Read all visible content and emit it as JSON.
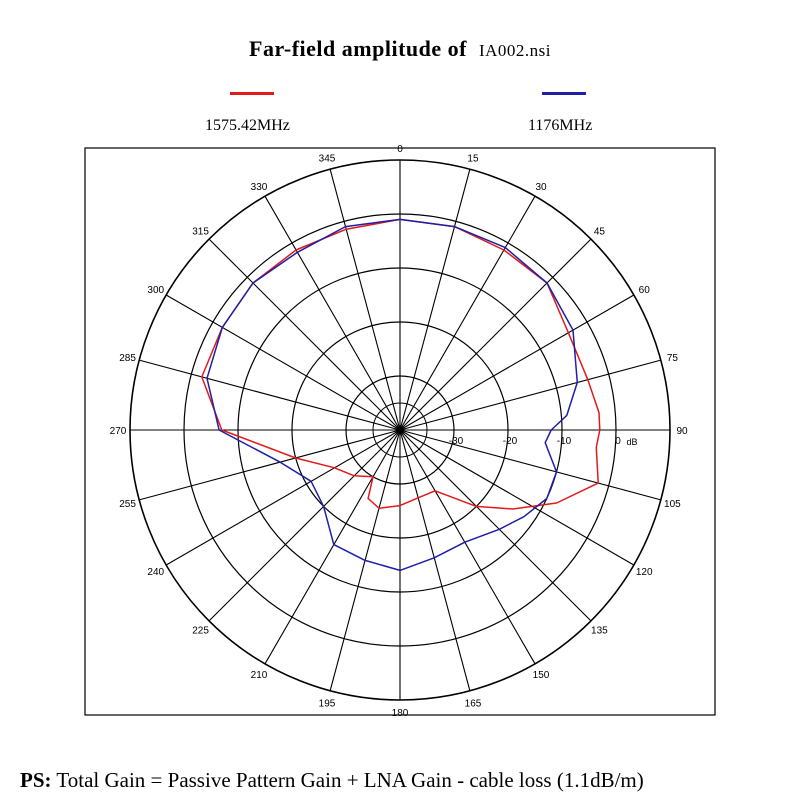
{
  "title": {
    "prefix": "Far-field amplitude of",
    "file": "IA002.nsi"
  },
  "legend": [
    {
      "label": "1575.42MHz",
      "color": "#e31a1c"
    },
    {
      "label": "1176MHz",
      "color": "#1f1fa8"
    }
  ],
  "note": {
    "label": "PS:",
    "text": " Total Gain = Passive Pattern Gain + LNA Gain - cable loss (1.1dB/m)"
  },
  "chart_data": {
    "type": "polar-line",
    "angle_unit": "deg",
    "angle_ticks": [
      0,
      15,
      30,
      45,
      60,
      75,
      90,
      105,
      120,
      135,
      150,
      165,
      180,
      195,
      210,
      225,
      240,
      255,
      270,
      285,
      300,
      315,
      330,
      345
    ],
    "r_ticks": [
      -30,
      -20,
      -10,
      0
    ],
    "r_unit": "dB",
    "r_range": [
      -40,
      10
    ],
    "grid": true,
    "series": [
      {
        "name": "1575.42MHz",
        "color": "#e31a1c",
        "angles": [
          0,
          15,
          30,
          45,
          60,
          75,
          85,
          90,
          95,
          105,
          115,
          125,
          135,
          150,
          165,
          180,
          195,
          205,
          210,
          225,
          240,
          255,
          270,
          285,
          300,
          315,
          330,
          345
        ],
        "values": [
          -1,
          -1,
          -1.5,
          -1.5,
          -4,
          -4,
          -3,
          -3,
          -3.5,
          -2,
          -8,
          -14.5,
          -20,
          -27,
          -27,
          -26,
          -25,
          -26,
          -30,
          -28,
          -26,
          -20,
          -7,
          -2,
          -2,
          -1.5,
          -1.5,
          -1.5
        ]
      },
      {
        "name": "1176MHz",
        "color": "#1f1fa8",
        "angles": [
          0,
          15,
          30,
          45,
          60,
          75,
          85,
          90,
          95,
          105,
          115,
          125,
          135,
          150,
          165,
          180,
          195,
          210,
          225,
          240,
          255,
          270,
          285,
          300,
          315,
          330,
          345
        ],
        "values": [
          -1,
          -1,
          -1,
          -1.5,
          -3,
          -6,
          -9,
          -12,
          -13,
          -10,
          -10,
          -12,
          -14,
          -16,
          -15.5,
          -14,
          -15,
          -15.5,
          -20,
          -21,
          -17,
          -6.5,
          -3,
          -2,
          -1.5,
          -2,
          -1
        ]
      }
    ]
  }
}
